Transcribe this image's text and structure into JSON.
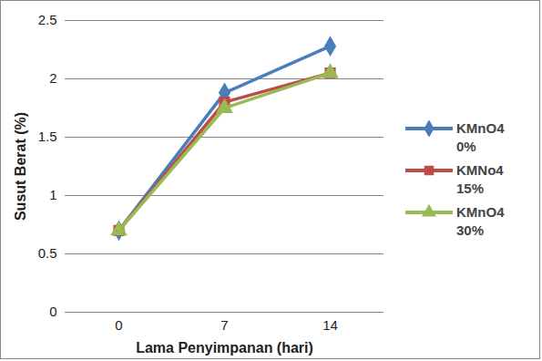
{
  "chart_data": {
    "type": "line",
    "x_label": "Lama Penyimpanan (hari)",
    "y_label": "Susut Berat (%)",
    "categories": [
      "0",
      "7",
      "14"
    ],
    "series": [
      {
        "name": "KMnO4 0%",
        "color": "#4a7ebb",
        "marker": "diamond",
        "values": [
          0.7,
          1.88,
          2.28
        ]
      },
      {
        "name": "KMNo4 15%",
        "color": "#be4b48",
        "marker": "square",
        "values": [
          0.7,
          1.8,
          2.05
        ]
      },
      {
        "name": "KMnO4 30%",
        "color": "#98b954",
        "marker": "triangle",
        "values": [
          0.7,
          1.75,
          2.05
        ]
      }
    ],
    "ylim": [
      0,
      2.5
    ],
    "yticks": [
      0,
      0.5,
      1,
      1.5,
      2,
      2.5
    ],
    "grid": true,
    "legend": "right"
  }
}
